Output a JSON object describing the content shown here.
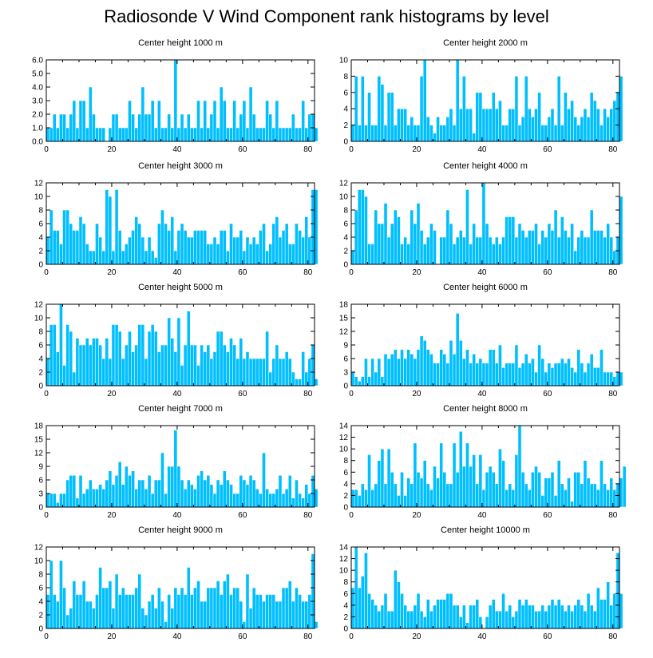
{
  "title": "Radiosonde V Wind Component rank histograms by level",
  "colors": {
    "bar": "#00bfff",
    "bar_edge": "#ffffff",
    "axis": "#000000"
  },
  "chart_data": [
    {
      "type": "bar",
      "title": "Center height 1000 m",
      "x_start": 0,
      "x_ticks": [
        0,
        20,
        40,
        60,
        80
      ],
      "xlim": [
        0,
        82
      ],
      "ylim": [
        0,
        6
      ],
      "y_ticks": [
        0,
        1,
        2,
        3,
        4,
        5,
        6
      ],
      "y_tick_labels": [
        "0.0",
        "1.0",
        "2.0",
        "3.0",
        "4.0",
        "5.0",
        "6.0"
      ],
      "values": [
        1,
        1,
        2,
        1,
        2,
        2,
        1,
        2,
        3,
        1,
        3,
        3,
        1,
        4,
        2,
        1,
        1,
        1,
        0,
        1,
        2,
        2,
        1,
        1,
        1,
        3,
        2,
        1,
        2,
        4,
        2,
        2,
        3,
        1,
        3,
        1,
        1,
        2,
        1,
        6,
        1,
        2,
        1,
        2,
        1,
        1,
        3,
        1,
        3,
        1,
        2,
        3,
        1,
        4,
        3,
        1,
        1,
        3,
        1,
        2,
        3,
        1,
        4,
        2,
        1,
        1,
        1,
        3,
        2,
        1,
        3,
        1,
        1,
        1,
        1,
        2,
        1,
        1,
        3,
        1,
        2,
        2,
        1
      ]
    },
    {
      "type": "bar",
      "title": "Center height 2000 m",
      "x_start": 0,
      "x_ticks": [
        0,
        20,
        40,
        60,
        80
      ],
      "xlim": [
        0,
        82
      ],
      "ylim": [
        0,
        10
      ],
      "y_ticks": [
        0,
        2,
        4,
        6,
        8,
        10
      ],
      "y_tick_labels": [
        "0",
        "2",
        "4",
        "6",
        "8",
        "10"
      ],
      "values": [
        2,
        8,
        2,
        8,
        2,
        6,
        2,
        2,
        8,
        7,
        2,
        6,
        6,
        2,
        4,
        4,
        4,
        2,
        3,
        2,
        2,
        8,
        10,
        3,
        2,
        1,
        3,
        2,
        2,
        3,
        4,
        2,
        10,
        4,
        8,
        4,
        4,
        1,
        6,
        6,
        4,
        4,
        4,
        6,
        4,
        5,
        2,
        2,
        4,
        4,
        8,
        2,
        3,
        8,
        4,
        3,
        4,
        6,
        2,
        2,
        3,
        4,
        2,
        8,
        2,
        6,
        4,
        5,
        3,
        2,
        3,
        4,
        3,
        6,
        5,
        4,
        2,
        4,
        3,
        4,
        5,
        6,
        8
      ]
    },
    {
      "type": "bar",
      "title": "Center height 3000 m",
      "x_start": 0,
      "x_ticks": [
        0,
        20,
        40,
        60,
        80
      ],
      "xlim": [
        0,
        82
      ],
      "ylim": [
        0,
        12
      ],
      "y_ticks": [
        0,
        2,
        4,
        6,
        8,
        10,
        12
      ],
      "y_tick_labels": [
        "0",
        "2",
        "4",
        "6",
        "8",
        "10",
        "12"
      ],
      "values": [
        4,
        8,
        5,
        5,
        3,
        8,
        8,
        6,
        5,
        5,
        7,
        6,
        3,
        2,
        2,
        6,
        4,
        2,
        11,
        10,
        2,
        11,
        5,
        2,
        3,
        4,
        5,
        7,
        6,
        4,
        2,
        4,
        2,
        1,
        6,
        8,
        6,
        5,
        7,
        2,
        5,
        6,
        5,
        4,
        4,
        5,
        5,
        5,
        5,
        3,
        3,
        4,
        3,
        5,
        5,
        2,
        6,
        4,
        4,
        5,
        2,
        4,
        3,
        4,
        3,
        5,
        6,
        2,
        3,
        6,
        7,
        4,
        5,
        6,
        3,
        3,
        6,
        5,
        4,
        7,
        4,
        11,
        11
      ]
    },
    {
      "type": "bar",
      "title": "Center height 4000 m",
      "x_start": 0,
      "x_ticks": [
        0,
        20,
        40,
        60,
        80
      ],
      "xlim": [
        0,
        82
      ],
      "ylim": [
        0,
        12
      ],
      "y_ticks": [
        0,
        2,
        4,
        6,
        8,
        10,
        12
      ],
      "y_tick_labels": [
        "0",
        "2",
        "4",
        "6",
        "8",
        "10",
        "12"
      ],
      "values": [
        2,
        8,
        11,
        11,
        10,
        3,
        3,
        8,
        6,
        6,
        9,
        4,
        6,
        8,
        7,
        3,
        4,
        3,
        8,
        6,
        9,
        5,
        3,
        4,
        6,
        5,
        0,
        4,
        4,
        8,
        6,
        3,
        4,
        5,
        4,
        11,
        3,
        6,
        4,
        4,
        12,
        6,
        4,
        3,
        4,
        3,
        4,
        7,
        7,
        7,
        4,
        6,
        5,
        4,
        5,
        5,
        6,
        3,
        5,
        4,
        6,
        5,
        8,
        4,
        7,
        5,
        4,
        6,
        2,
        4,
        5,
        4,
        4,
        8,
        5,
        5,
        5,
        4,
        6,
        4,
        2,
        4,
        10
      ]
    },
    {
      "type": "bar",
      "title": "Center height 5000 m",
      "x_start": 0,
      "x_ticks": [
        0,
        20,
        40,
        60,
        80
      ],
      "xlim": [
        0,
        82
      ],
      "ylim": [
        0,
        12
      ],
      "y_ticks": [
        0,
        2,
        4,
        6,
        8,
        10,
        12
      ],
      "y_tick_labels": [
        "0",
        "2",
        "4",
        "6",
        "8",
        "10",
        "12"
      ],
      "values": [
        4,
        9,
        9,
        5,
        12,
        3,
        9,
        8,
        2,
        7,
        6,
        6,
        7,
        6,
        7,
        7,
        6,
        4,
        7,
        4,
        9,
        9,
        8,
        4,
        6,
        8,
        5,
        6,
        9,
        9,
        4,
        8,
        9,
        8,
        5,
        6,
        6,
        10,
        7,
        5,
        10,
        3,
        6,
        11,
        6,
        6,
        3,
        6,
        5,
        6,
        4,
        5,
        8,
        8,
        6,
        5,
        7,
        6,
        4,
        7,
        4,
        5,
        4,
        4,
        4,
        4,
        4,
        8,
        2,
        4,
        6,
        4,
        4,
        5,
        4,
        2,
        1,
        1,
        5,
        2,
        4,
        6,
        1
      ]
    },
    {
      "type": "bar",
      "title": "Center height 6000 m",
      "x_start": 0,
      "x_ticks": [
        0,
        20,
        40,
        60,
        80
      ],
      "xlim": [
        0,
        82
      ],
      "ylim": [
        0,
        18
      ],
      "y_ticks": [
        0,
        3,
        6,
        9,
        12,
        15,
        18
      ],
      "y_tick_labels": [
        "0",
        "3",
        "6",
        "9",
        "12",
        "15",
        "18"
      ],
      "values": [
        3,
        2,
        1,
        2,
        6,
        2,
        6,
        3,
        6,
        2,
        7,
        6,
        7,
        8,
        6,
        8,
        6,
        8,
        7,
        6,
        8,
        11,
        10,
        8,
        7,
        5,
        5,
        8,
        7,
        5,
        10,
        7,
        16,
        10,
        6,
        8,
        5,
        7,
        5,
        6,
        5,
        5,
        8,
        8,
        5,
        9,
        4,
        5,
        5,
        5,
        9,
        4,
        5,
        7,
        5,
        6,
        3,
        9,
        6,
        3,
        5,
        4,
        5,
        5,
        6,
        5,
        6,
        4,
        3,
        8,
        5,
        3,
        5,
        7,
        4,
        4,
        8,
        3,
        3,
        3,
        2,
        3,
        3
      ]
    },
    {
      "type": "bar",
      "title": "Center height 7000 m",
      "x_start": 0,
      "x_ticks": [
        0,
        20,
        40,
        60,
        80
      ],
      "xlim": [
        0,
        82
      ],
      "ylim": [
        0,
        18
      ],
      "y_ticks": [
        0,
        3,
        6,
        9,
        12,
        15,
        18
      ],
      "y_tick_labels": [
        "0",
        "3",
        "6",
        "9",
        "12",
        "15",
        "18"
      ],
      "values": [
        3,
        3,
        3,
        1,
        3,
        3,
        6,
        7,
        7,
        2,
        7,
        3,
        4,
        6,
        4,
        4,
        5,
        4,
        6,
        8,
        5,
        7,
        10,
        5,
        9,
        7,
        8,
        4,
        6,
        6,
        4,
        7,
        3,
        6,
        6,
        12,
        3,
        9,
        9,
        17,
        9,
        6,
        4,
        6,
        5,
        4,
        7,
        8,
        6,
        7,
        5,
        3,
        6,
        5,
        8,
        6,
        5,
        3,
        3,
        7,
        6,
        5,
        7,
        6,
        4,
        3,
        12,
        4,
        3,
        3,
        4,
        7,
        3,
        4,
        7,
        2,
        6,
        3,
        2,
        5,
        3,
        7,
        4
      ]
    },
    {
      "type": "bar",
      "title": "Center height 8000 m",
      "x_start": 0,
      "x_ticks": [
        0,
        20,
        40,
        60,
        80
      ],
      "xlim": [
        0,
        82
      ],
      "ylim": [
        0,
        14
      ],
      "y_ticks": [
        0,
        2,
        4,
        6,
        8,
        10,
        12,
        14
      ],
      "y_tick_labels": [
        "0",
        "2",
        "4",
        "6",
        "8",
        "10",
        "12",
        "14"
      ],
      "values": [
        3,
        3,
        2,
        4,
        3,
        9,
        3,
        4,
        8,
        10,
        4,
        10,
        6,
        4,
        2,
        6,
        2,
        5,
        4,
        11,
        6,
        5,
        8,
        4,
        3,
        7,
        5,
        11,
        6,
        4,
        4,
        11,
        6,
        13,
        7,
        11,
        7,
        9,
        4,
        9,
        3,
        6,
        7,
        6,
        4,
        10,
        8,
        3,
        4,
        3,
        9,
        14,
        6,
        4,
        3,
        6,
        7,
        6,
        2,
        5,
        5,
        6,
        2,
        8,
        4,
        3,
        5,
        1,
        6,
        6,
        4,
        8,
        5,
        4,
        4,
        3,
        8,
        4,
        3,
        5,
        3,
        4,
        5,
        7
      ]
    },
    {
      "type": "bar",
      "title": "Center height 9000 m",
      "x_start": 0,
      "x_ticks": [
        0,
        20,
        40,
        60,
        80
      ],
      "xlim": [
        0,
        82
      ],
      "ylim": [
        0,
        12
      ],
      "y_ticks": [
        0,
        2,
        4,
        6,
        8,
        10,
        12
      ],
      "y_tick_labels": [
        "0",
        "2",
        "4",
        "6",
        "8",
        "10",
        "12"
      ],
      "values": [
        5,
        10,
        5,
        4,
        10,
        6,
        2,
        3,
        7,
        5,
        5,
        7,
        4,
        4,
        3,
        5,
        9,
        6,
        6,
        7,
        3,
        8,
        5,
        6,
        5,
        5,
        5,
        6,
        8,
        3,
        2,
        4,
        5,
        3,
        6,
        4,
        1,
        5,
        3,
        6,
        5,
        6,
        5,
        9,
        5,
        6,
        7,
        4,
        4,
        6,
        6,
        6,
        7,
        5,
        7,
        8,
        5,
        6,
        6,
        4,
        1,
        8,
        3,
        6,
        5,
        5,
        4,
        5,
        5,
        5,
        4,
        4,
        6,
        6,
        7,
        4,
        6,
        5,
        4,
        4,
        5,
        11,
        1
      ]
    },
    {
      "type": "bar",
      "title": "Center height 10000 m",
      "x_start": 0,
      "x_ticks": [
        0,
        20,
        40,
        60,
        80
      ],
      "xlim": [
        0,
        82
      ],
      "ylim": [
        0,
        14
      ],
      "y_ticks": [
        0,
        2,
        4,
        6,
        8,
        10,
        12,
        14
      ],
      "y_tick_labels": [
        "0",
        "2",
        "4",
        "6",
        "8",
        "10",
        "12",
        "14"
      ],
      "values": [
        7,
        14,
        7,
        9,
        13,
        6,
        5,
        4,
        3,
        4,
        6,
        3,
        3,
        10,
        8,
        6,
        4,
        3,
        3,
        4,
        6,
        3,
        2,
        5,
        3,
        4,
        5,
        5,
        5,
        6,
        6,
        4,
        4,
        2,
        4,
        1,
        4,
        4,
        5,
        2,
        0,
        2,
        4,
        5,
        3,
        3,
        6,
        3,
        4,
        2,
        3,
        5,
        4,
        5,
        4,
        4,
        3,
        3,
        4,
        3,
        4,
        5,
        4,
        5,
        4,
        3,
        4,
        3,
        4,
        5,
        4,
        3,
        6,
        4,
        3,
        7,
        5,
        5,
        8,
        4,
        6,
        13,
        6
      ]
    }
  ]
}
